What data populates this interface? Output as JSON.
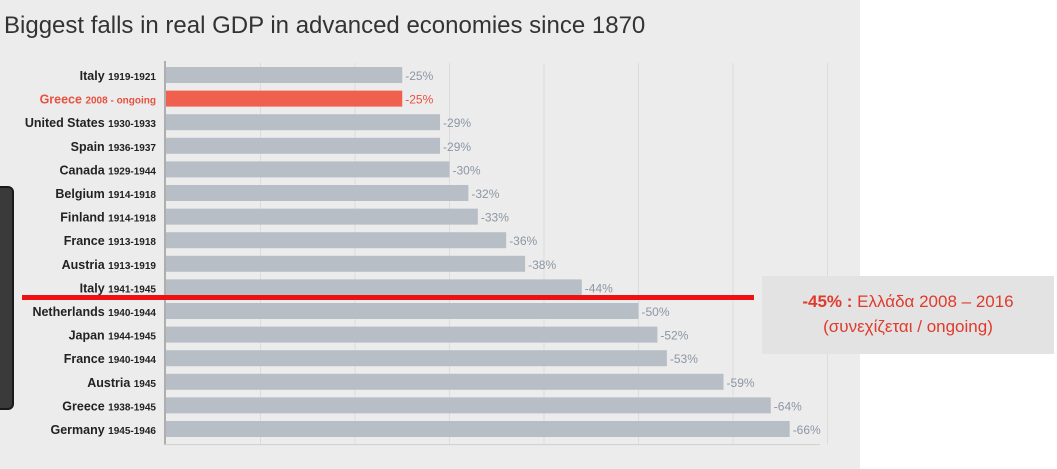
{
  "chart_data": {
    "type": "bar",
    "orientation": "horizontal",
    "title": "Biggest falls in real GDP in advanced economies since 1870",
    "xlabel": "",
    "ylabel": "",
    "xlim": [
      0,
      -70
    ],
    "categories": [
      {
        "name": "Italy",
        "years": "1919-1921"
      },
      {
        "name": "Greece",
        "years": "2008 - ongoing"
      },
      {
        "name": "United States",
        "years": "1930-1933"
      },
      {
        "name": "Spain",
        "years": "1936-1937"
      },
      {
        "name": "Canada",
        "years": "1929-1944"
      },
      {
        "name": "Belgium",
        "years": "1914-1918"
      },
      {
        "name": "Finland",
        "years": "1914-1918"
      },
      {
        "name": "France",
        "years": "1913-1918"
      },
      {
        "name": "Austria",
        "years": "1913-1919"
      },
      {
        "name": "Italy",
        "years": "1941-1945"
      },
      {
        "name": "Netherlands",
        "years": "1940-1944"
      },
      {
        "name": "Japan",
        "years": "1944-1945"
      },
      {
        "name": "France",
        "years": "1940-1944"
      },
      {
        "name": "Austria",
        "years": "1945"
      },
      {
        "name": "Greece",
        "years": "1938-1945"
      },
      {
        "name": "Germany",
        "years": "1945-1946"
      }
    ],
    "values": [
      -25,
      -25,
      -29,
      -29,
      -30,
      -32,
      -33,
      -36,
      -38,
      -44,
      -50,
      -52,
      -53,
      -59,
      -64,
      -66
    ],
    "value_labels": [
      "-25%",
      "-25%",
      "-29%",
      "-29%",
      "-30%",
      "-32%",
      "-33%",
      "-36%",
      "-38%",
      "-44%",
      "-50%",
      "-52%",
      "-53%",
      "-59%",
      "-64%",
      "-66%"
    ],
    "highlight_index": 1,
    "colors": {
      "bar": "#b8bec6",
      "highlight": "#f0604f",
      "highlight_text": "#e8503f",
      "value_label": "#8c96a3",
      "category_text": "#222222"
    },
    "annotation": {
      "value_label": "-45% :",
      "text": "Ελλάδα 2008 – 2016",
      "subtext": "(συνεχίζεται / ongoing)",
      "value": -45,
      "color": "#ee1111"
    }
  }
}
